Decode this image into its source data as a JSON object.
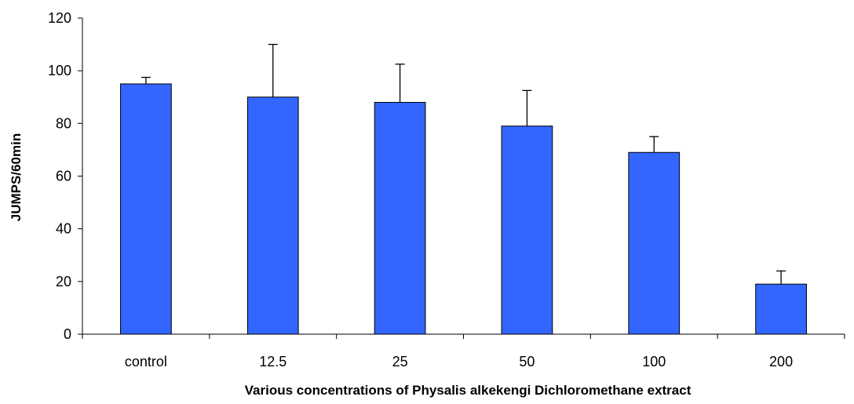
{
  "chart_data": {
    "type": "bar",
    "title": "",
    "xlabel": "Various concentrations of Physalis alkekengi Dichloromethane extract",
    "ylabel": "JUMPS/60min",
    "categories": [
      "control",
      "12.5",
      "25",
      "50",
      "100",
      "200"
    ],
    "series": [
      {
        "values": [
          95,
          90,
          88,
          79,
          69,
          19
        ],
        "error": [
          2.5,
          20,
          14.5,
          13.5,
          6,
          5
        ]
      }
    ],
    "ylim": [
      0,
      120
    ],
    "yticks": [
      0,
      20,
      40,
      60,
      80,
      100,
      120
    ],
    "grid": false,
    "legend": "none",
    "bar_color": "#3366FF"
  }
}
